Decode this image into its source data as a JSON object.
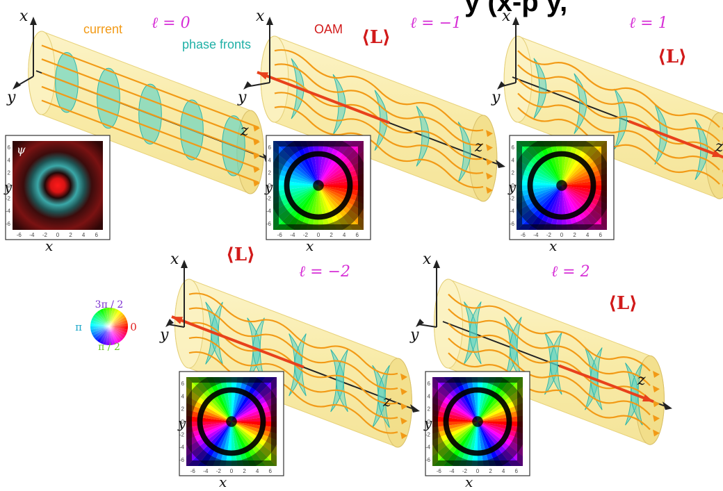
{
  "header_fragment": "y (x-p y,",
  "labels": {
    "current": "current",
    "phase_fronts": "phase fronts",
    "oam": "OAM",
    "L": "⟨L⟩",
    "psi": "ψ"
  },
  "axes": {
    "x": "x",
    "y": "y",
    "z": "z"
  },
  "colorwheel": {
    "top": "3π / 2",
    "left": "π",
    "right": "0",
    "bottom": "π / 2"
  },
  "panel_ticks": [
    "-6",
    "-4",
    "-2",
    "0",
    "2",
    "4",
    "6"
  ],
  "panels": [
    {
      "id": "l0",
      "ell_label": "ℓ = 0",
      "mode_l": 0
    },
    {
      "id": "lm1",
      "ell_label": "ℓ = −1",
      "mode_l": -1
    },
    {
      "id": "l1",
      "ell_label": "ℓ = 1",
      "mode_l": 1
    },
    {
      "id": "lm2",
      "ell_label": "ℓ = −2",
      "mode_l": -2
    },
    {
      "id": "l2",
      "ell_label": "ℓ = 2",
      "mode_l": 2
    }
  ],
  "colors": {
    "cylinder": "#f6e79a",
    "phase_front": "#53d2c8",
    "current": "#f29a16",
    "oam_arrow": "#e8411b",
    "ell_label": "#d62dd6",
    "L_label": "#d11a1a",
    "axis": "#222222",
    "header": "#000000"
  }
}
